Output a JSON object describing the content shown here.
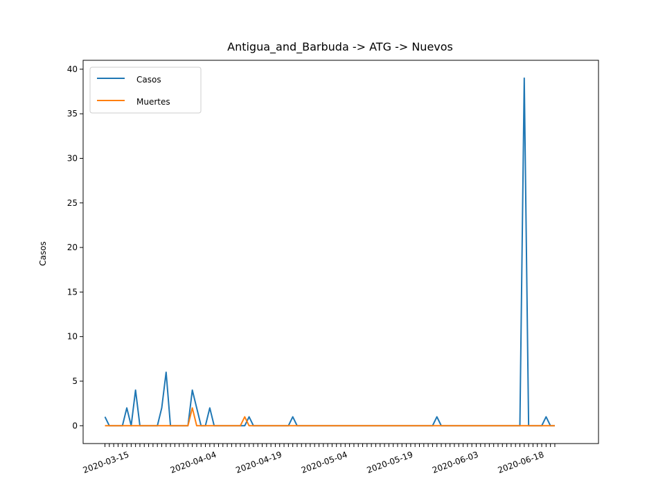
{
  "chart_data": {
    "type": "line",
    "title": "Antigua_and_Barbuda -> ATG -> Nuevos",
    "xlabel": "",
    "ylabel": "Casos",
    "ylim": [
      -2,
      41
    ],
    "xlim": [
      "2020-03-05",
      "2020-07-01"
    ],
    "yticks": [
      0,
      5,
      10,
      15,
      20,
      25,
      30,
      35,
      40
    ],
    "xtick_labels": [
      "2020-03-15",
      "2020-04-04",
      "2020-04-19",
      "2020-05-04",
      "2020-05-19",
      "2020-06-03",
      "2020-06-18"
    ],
    "grid": false,
    "legend_position": "top-left",
    "x_start": "2020-03-10",
    "series": [
      {
        "name": "Casos",
        "color": "#1f77b4",
        "values": [
          1,
          0,
          0,
          0,
          0,
          2,
          0,
          4,
          0,
          0,
          0,
          0,
          0,
          2,
          6,
          0,
          0,
          0,
          0,
          0,
          4,
          2,
          0,
          0,
          2,
          0,
          0,
          0,
          0,
          0,
          0,
          0,
          0,
          1,
          0,
          0,
          0,
          0,
          0,
          0,
          0,
          0,
          0,
          1,
          0,
          0,
          0,
          0,
          0,
          0,
          0,
          0,
          0,
          0,
          0,
          0,
          0,
          0,
          0,
          0,
          0,
          0,
          0,
          0,
          0,
          0,
          0,
          0,
          0,
          0,
          0,
          0,
          0,
          0,
          0,
          0,
          1,
          0,
          0,
          0,
          0,
          0,
          0,
          0,
          0,
          0,
          0,
          0,
          0,
          0,
          0,
          0,
          0,
          0,
          0,
          0,
          39,
          0,
          0,
          0,
          0,
          1,
          0,
          0
        ]
      },
      {
        "name": "Muertes",
        "color": "#ff7f0e",
        "values": [
          0,
          0,
          0,
          0,
          0,
          0,
          0,
          0,
          0,
          0,
          0,
          0,
          0,
          0,
          0,
          0,
          0,
          0,
          0,
          0,
          2,
          0,
          0,
          0,
          0,
          0,
          0,
          0,
          0,
          0,
          0,
          0,
          1,
          0,
          0,
          0,
          0,
          0,
          0,
          0,
          0,
          0,
          0,
          0,
          0,
          0,
          0,
          0,
          0,
          0,
          0,
          0,
          0,
          0,
          0,
          0,
          0,
          0,
          0,
          0,
          0,
          0,
          0,
          0,
          0,
          0,
          0,
          0,
          0,
          0,
          0,
          0,
          0,
          0,
          0,
          0,
          0,
          0,
          0,
          0,
          0,
          0,
          0,
          0,
          0,
          0,
          0,
          0,
          0,
          0,
          0,
          0,
          0,
          0,
          0,
          0,
          0,
          0,
          0,
          0,
          0,
          0,
          0,
          0
        ]
      }
    ]
  }
}
